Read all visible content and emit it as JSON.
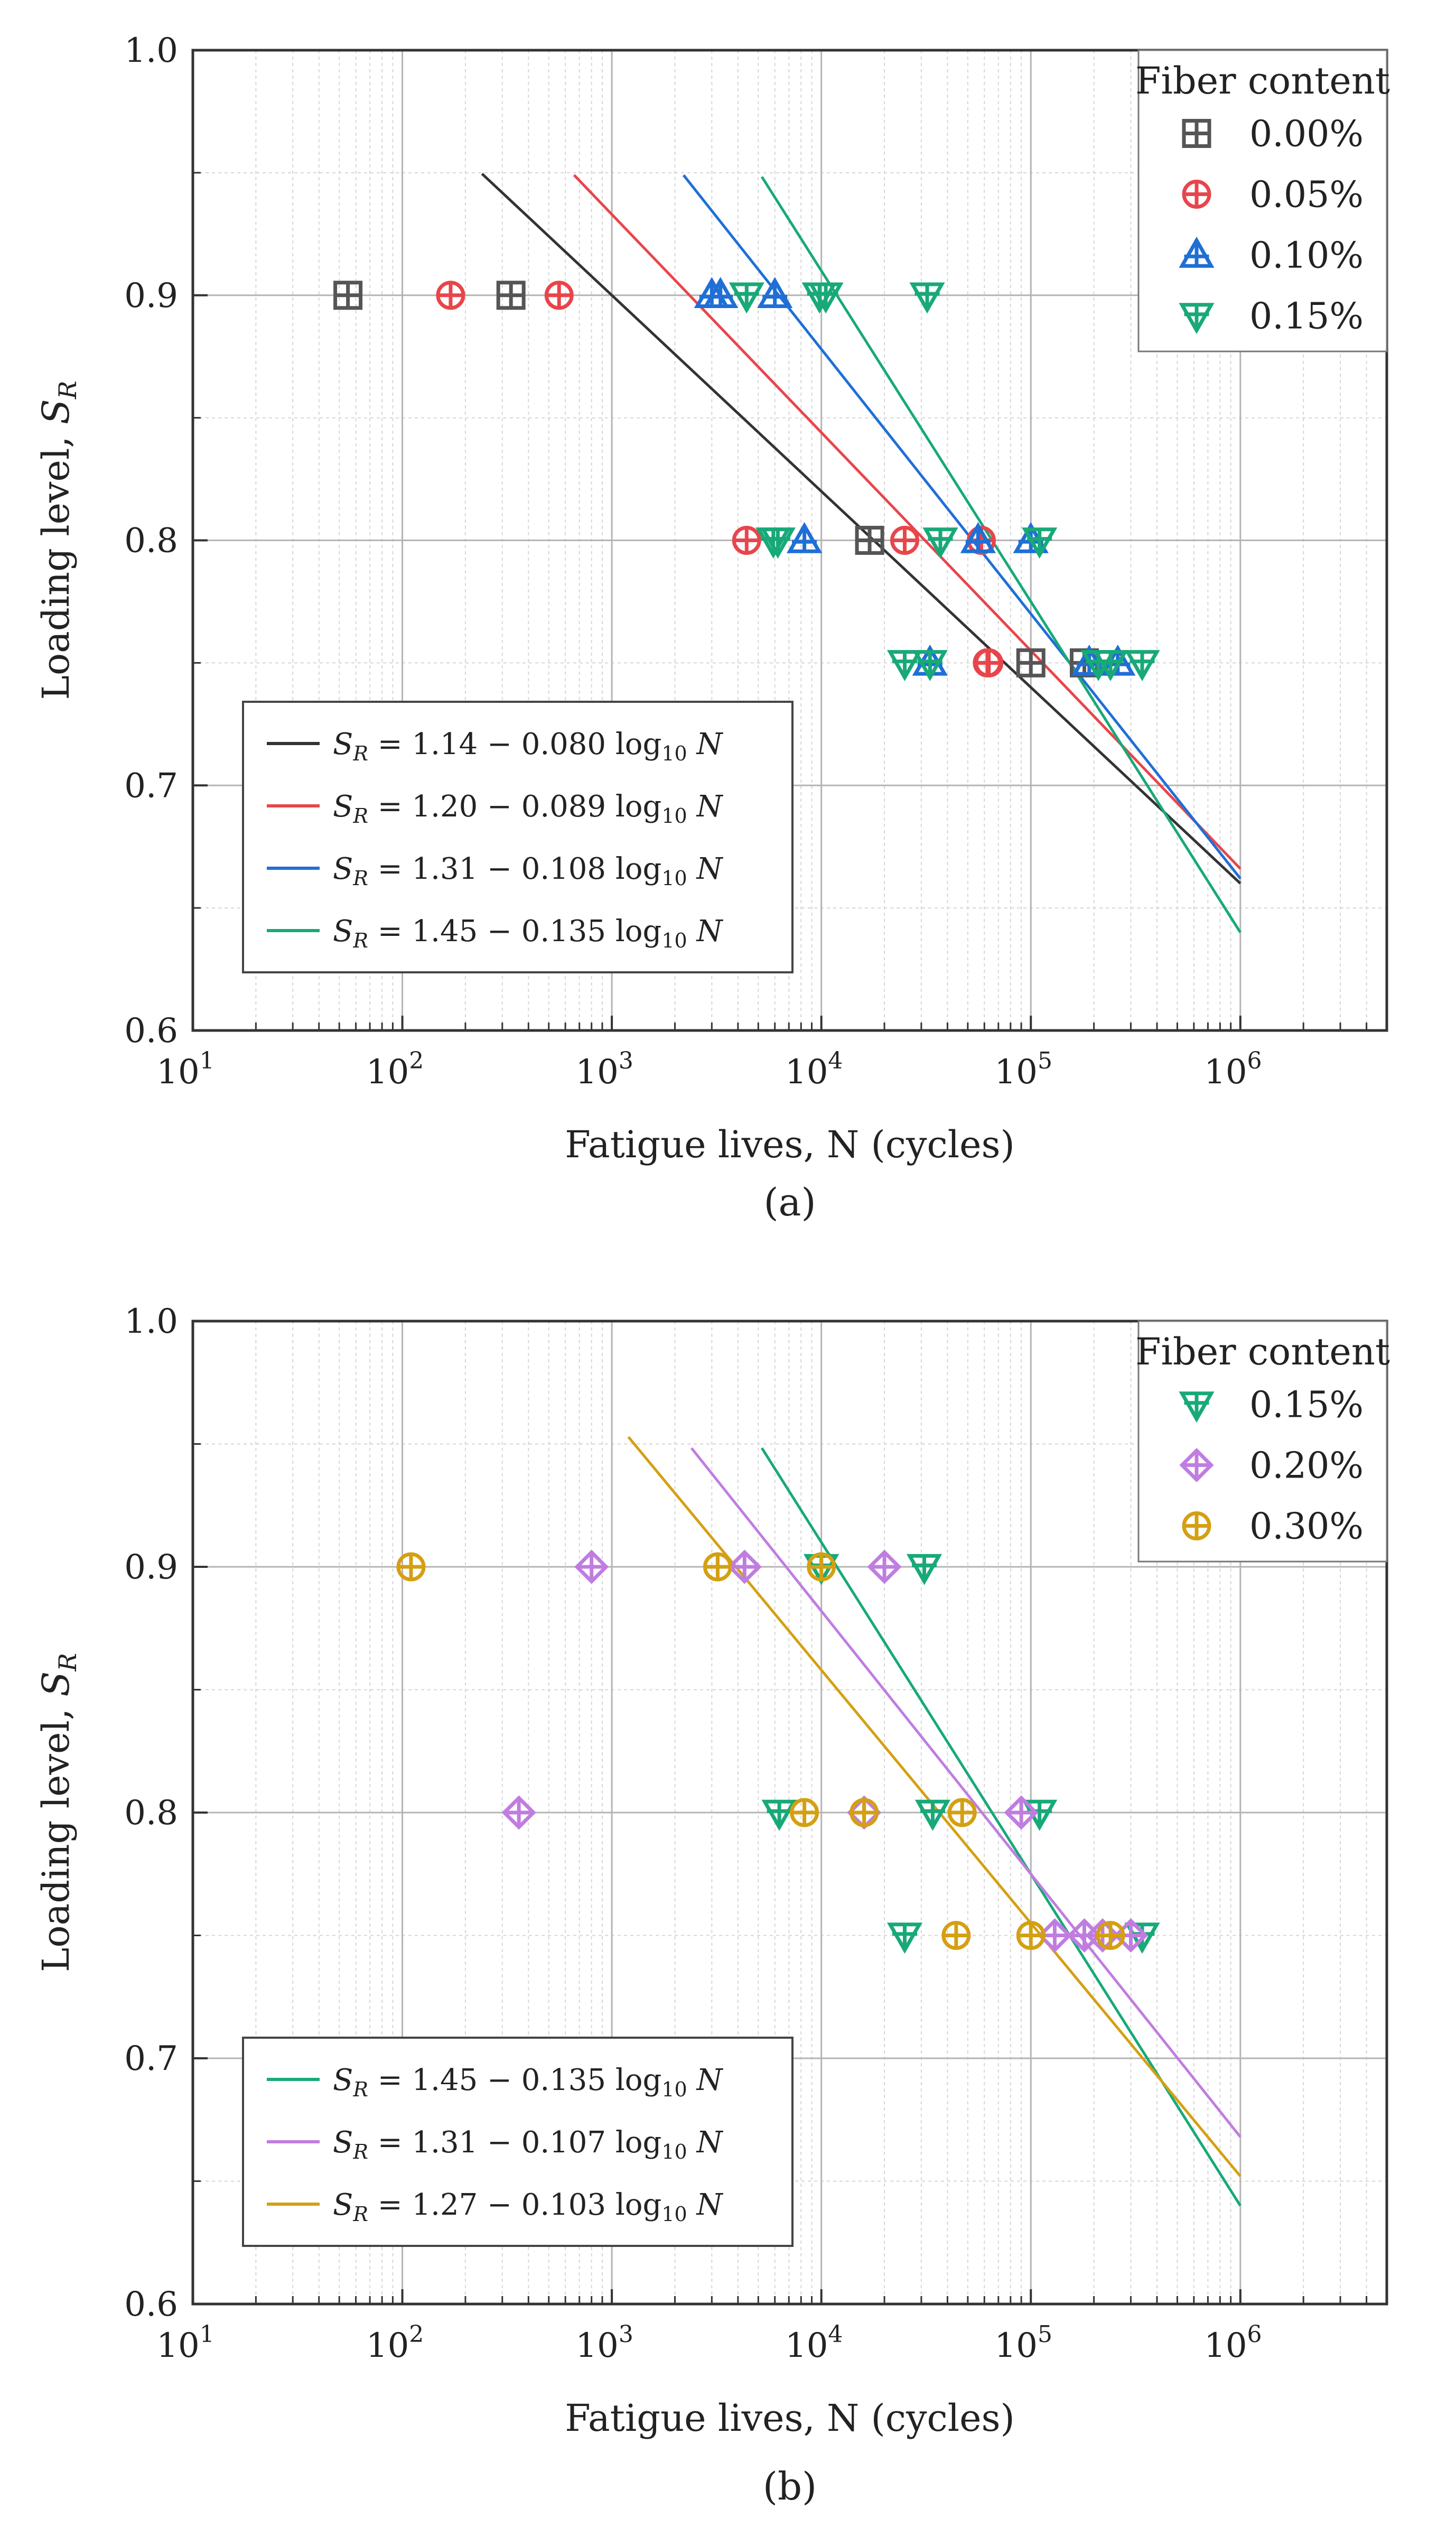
{
  "chart_data": [
    {
      "type": "scatter",
      "panel_label": "(a)",
      "xscale": "log",
      "xlim": [
        10,
        5000000
      ],
      "ylim": [
        0.6,
        1.0
      ],
      "xlabel": "Fatigue lives, N (cycles)",
      "ylabel": "Loading level, S_R",
      "ylabel_text": "Loading level, ",
      "ylabel_symbol": "S",
      "ylabel_sub": "R",
      "x_major_ticks": [
        {
          "value": 10,
          "base": "10",
          "exp": "1"
        },
        {
          "value": 100,
          "base": "10",
          "exp": "2"
        },
        {
          "value": 1000,
          "base": "10",
          "exp": "3"
        },
        {
          "value": 10000,
          "base": "10",
          "exp": "4"
        },
        {
          "value": 100000,
          "base": "10",
          "exp": "5"
        },
        {
          "value": 1000000,
          "base": "10",
          "exp": "6"
        }
      ],
      "y_ticks": [
        {
          "value": 0.6,
          "label": "0.6"
        },
        {
          "value": 0.7,
          "label": "0.7"
        },
        {
          "value": 0.8,
          "label": "0.8"
        },
        {
          "value": 0.9,
          "label": "0.9"
        },
        {
          "value": 1.0,
          "label": "1.0"
        }
      ],
      "grid": true,
      "legend": {
        "title": "Fiber content",
        "position": "top-right",
        "entries": [
          {
            "label": "0.00%",
            "marker": "square-plus",
            "color": "#555555"
          },
          {
            "label": "0.05%",
            "marker": "circle-plus",
            "color": "#e8454b"
          },
          {
            "label": "0.10%",
            "marker": "triangle-up-plus",
            "color": "#1f6fd6"
          },
          {
            "label": "0.15%",
            "marker": "triangle-down-plus",
            "color": "#18a978"
          }
        ]
      },
      "series": [
        {
          "name": "0.00%",
          "marker": "square-plus",
          "color": "#555555",
          "x": [
            55,
            330,
            17000,
            100000,
            180000
          ],
          "y": [
            0.9,
            0.9,
            0.8,
            0.75,
            0.75
          ]
        },
        {
          "name": "0.05%",
          "marker": "circle-plus",
          "color": "#e8454b",
          "x": [
            170,
            560,
            4400,
            25000,
            58000,
            63000,
            62000
          ],
          "y": [
            0.9,
            0.9,
            0.8,
            0.8,
            0.8,
            0.75,
            0.75
          ]
        },
        {
          "name": "0.10%",
          "marker": "triangle-up-plus",
          "color": "#1f6fd6",
          "x": [
            3000,
            3300,
            6000,
            8300,
            56000,
            100000,
            33000,
            190000,
            260000
          ],
          "y": [
            0.9,
            0.9,
            0.9,
            0.8,
            0.8,
            0.8,
            0.75,
            0.75,
            0.75
          ]
        },
        {
          "name": "0.15%",
          "marker": "triangle-down-plus",
          "color": "#18a978",
          "x": [
            4400,
            9800,
            10500,
            32000,
            5900,
            6200,
            37000,
            110000,
            25000,
            33000,
            210000,
            240000,
            340000
          ],
          "y": [
            0.9,
            0.9,
            0.9,
            0.9,
            0.8,
            0.8,
            0.8,
            0.8,
            0.75,
            0.75,
            0.75,
            0.75,
            0.75
          ]
        }
      ],
      "fit_lines": [
        {
          "name": "0.00%",
          "equation": "S_R = 1.14 − 0.080 log10 N",
          "coef": "1.14 − 0.080",
          "a": 1.14,
          "b": 0.08,
          "color": "#333333",
          "x_range": [
            240,
            1000000
          ]
        },
        {
          "name": "0.05%",
          "equation": "S_R = 1.20 − 0.089 log10 N",
          "coef": "1.20 − 0.089",
          "a": 1.2,
          "b": 0.089,
          "color": "#e8454b",
          "x_range": [
            660,
            1000000
          ]
        },
        {
          "name": "0.10%",
          "equation": "S_R = 1.31 − 0.108 log10 N",
          "coef": "1.31 − 0.108",
          "a": 1.31,
          "b": 0.108,
          "color": "#1f6fd6",
          "x_range": [
            2200,
            1000000
          ]
        },
        {
          "name": "0.15%",
          "equation": "S_R = 1.45 − 0.135 log10 N",
          "coef": "1.45 − 0.135",
          "a": 1.45,
          "b": 0.135,
          "color": "#18a978",
          "x_range": [
            5200,
            1000000
          ]
        }
      ]
    },
    {
      "type": "scatter",
      "panel_label": "(b)",
      "xscale": "log",
      "xlim": [
        10,
        5000000
      ],
      "ylim": [
        0.6,
        1.0
      ],
      "xlabel": "Fatigue lives, N (cycles)",
      "ylabel": "Loading level, S_R",
      "ylabel_text": "Loading level, ",
      "ylabel_symbol": "S",
      "ylabel_sub": "R",
      "x_major_ticks": [
        {
          "value": 10,
          "base": "10",
          "exp": "1"
        },
        {
          "value": 100,
          "base": "10",
          "exp": "2"
        },
        {
          "value": 1000,
          "base": "10",
          "exp": "3"
        },
        {
          "value": 10000,
          "base": "10",
          "exp": "4"
        },
        {
          "value": 100000,
          "base": "10",
          "exp": "5"
        },
        {
          "value": 1000000,
          "base": "10",
          "exp": "6"
        }
      ],
      "y_ticks": [
        {
          "value": 0.6,
          "label": "0.6"
        },
        {
          "value": 0.7,
          "label": "0.7"
        },
        {
          "value": 0.8,
          "label": "0.8"
        },
        {
          "value": 0.9,
          "label": "0.9"
        },
        {
          "value": 1.0,
          "label": "1.0"
        }
      ],
      "grid": true,
      "legend": {
        "title": "Fiber content",
        "position": "top-right",
        "entries": [
          {
            "label": "0.15%",
            "marker": "triangle-down-plus",
            "color": "#18a978"
          },
          {
            "label": "0.20%",
            "marker": "diamond-plus",
            "color": "#c07de0"
          },
          {
            "label": "0.30%",
            "marker": "circle-plus",
            "color": "#d4a012"
          }
        ]
      },
      "series": [
        {
          "name": "0.15%",
          "marker": "triangle-down-plus",
          "color": "#18a978",
          "x": [
            10000,
            31000,
            6300,
            34000,
            110000,
            25000,
            340000
          ],
          "y": [
            0.9,
            0.9,
            0.8,
            0.8,
            0.8,
            0.75,
            0.75
          ]
        },
        {
          "name": "0.20%",
          "marker": "diamond-plus",
          "color": "#c07de0",
          "x": [
            800,
            4300,
            20000,
            360,
            16000,
            90000,
            130000,
            180000,
            220000,
            300000
          ],
          "y": [
            0.9,
            0.9,
            0.9,
            0.8,
            0.8,
            0.8,
            0.75,
            0.75,
            0.75,
            0.75
          ]
        },
        {
          "name": "0.30%",
          "marker": "circle-plus",
          "color": "#d4a012",
          "x": [
            110,
            3200,
            10000,
            8300,
            16000,
            47000,
            44000,
            100000,
            240000
          ],
          "y": [
            0.9,
            0.9,
            0.9,
            0.8,
            0.8,
            0.8,
            0.75,
            0.75,
            0.75
          ]
        }
      ],
      "fit_lines": [
        {
          "name": "0.15%",
          "equation": "S_R = 1.45 − 0.135 log10 N",
          "coef": "1.45 − 0.135",
          "a": 1.45,
          "b": 0.135,
          "color": "#18a978",
          "x_range": [
            5200,
            1000000
          ]
        },
        {
          "name": "0.20%",
          "equation": "S_R = 1.31 − 0.107 log10 N",
          "coef": "1.31 − 0.107",
          "a": 1.31,
          "b": 0.107,
          "color": "#c07de0",
          "x_range": [
            2400,
            1000000
          ]
        },
        {
          "name": "0.30%",
          "equation": "S_R = 1.27 − 0.103 log10 N",
          "coef": "1.27 − 0.103",
          "a": 1.27,
          "b": 0.103,
          "color": "#d4a012",
          "x_range": [
            1200,
            1000000
          ]
        }
      ]
    }
  ]
}
